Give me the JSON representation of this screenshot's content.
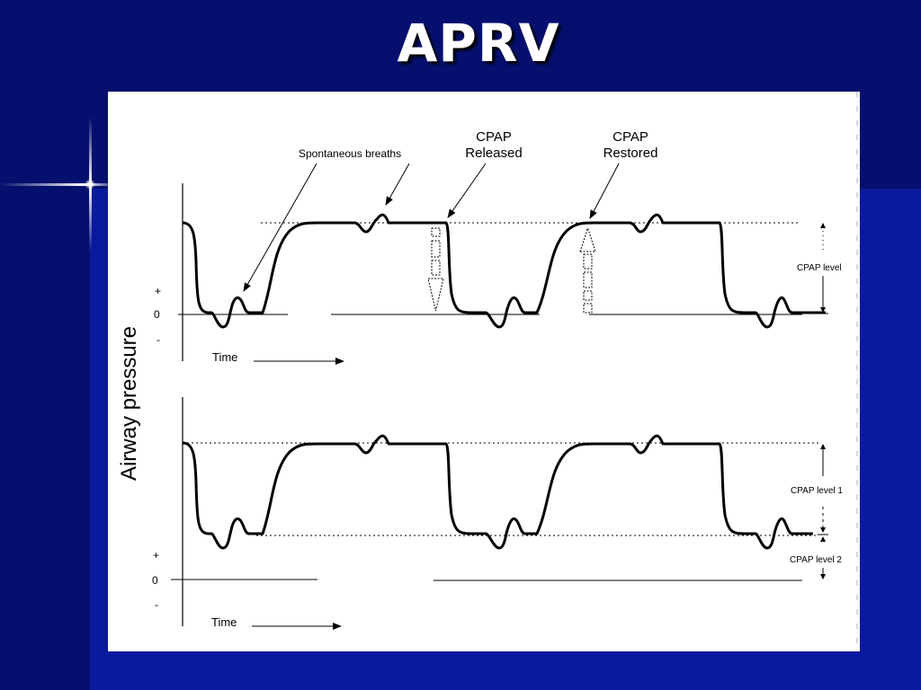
{
  "slide": {
    "title": "APRV"
  },
  "diagram": {
    "y_axis_label": "Airway pressure",
    "annotations": {
      "spontaneous_breaths": "Spontaneous  breaths",
      "cpap_released_1": "CPAP",
      "cpap_released_2": "Released",
      "cpap_restored_1": "CPAP",
      "cpap_restored_2": "Restored"
    },
    "top_panel": {
      "plus": "+",
      "zero": "0",
      "minus": "-",
      "time_label": "Time",
      "level_label": "CPAP level"
    },
    "bottom_panel": {
      "plus": "+",
      "zero": "0",
      "minus": "-",
      "time_label": "Time",
      "level1_label": "CPAP level 1",
      "level2_label": "CPAP level 2"
    }
  }
}
